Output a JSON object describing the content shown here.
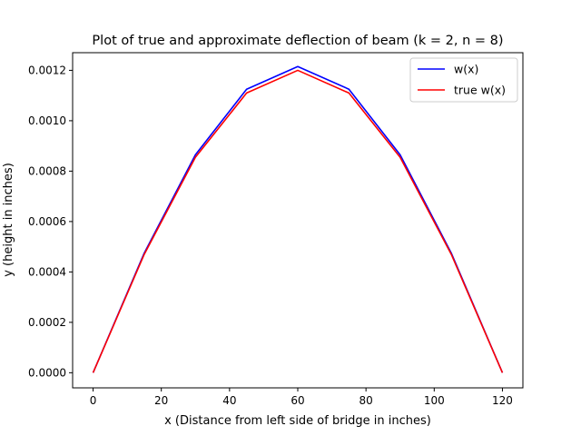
{
  "chart_data": {
    "type": "line",
    "title": "Plot of true and approximate deflection of beam (k = 2, n = 8)",
    "xlabel": "x (Distance from left side of bridge in inches)",
    "ylabel": "y (height in inches)",
    "xlim": [
      -6,
      126
    ],
    "ylim": [
      -6e-05,
      0.00127
    ],
    "xticks": [
      0,
      20,
      40,
      60,
      80,
      100,
      120
    ],
    "xtick_labels": [
      "0",
      "20",
      "40",
      "60",
      "80",
      "100",
      "120"
    ],
    "yticks": [
      0,
      0.0002,
      0.0004,
      0.0006,
      0.0008,
      0.001,
      0.0012
    ],
    "ytick_labels": [
      "0.0000",
      "0.0002",
      "0.0004",
      "0.0006",
      "0.0008",
      "0.0010",
      "0.0012"
    ],
    "grid": false,
    "legend_position": "top-right",
    "x": [
      0,
      15,
      30,
      45,
      60,
      75,
      90,
      105,
      120
    ],
    "series": [
      {
        "name": "w(x)",
        "color": "#0000ff",
        "values": [
          0,
          0.000475,
          0.000865,
          0.001125,
          0.001215,
          0.001125,
          0.000865,
          0.000475,
          0
        ]
      },
      {
        "name": "true w(x)",
        "color": "#ff0000",
        "values": [
          0,
          0.00047,
          0.000855,
          0.00111,
          0.0012,
          0.00111,
          0.000855,
          0.00047,
          0
        ]
      }
    ]
  }
}
